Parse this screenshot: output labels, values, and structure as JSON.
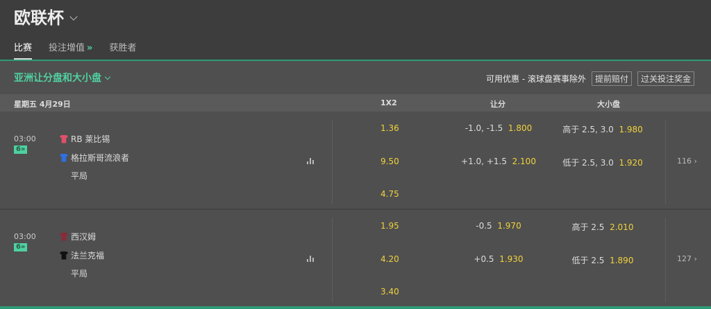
{
  "header": {
    "title": "欧联杯"
  },
  "tabs": [
    {
      "label": "比赛",
      "active": true
    },
    {
      "label": "投注增值",
      "suffix": "»"
    },
    {
      "label": "获胜者"
    }
  ],
  "section": {
    "title": "亚洲让分盘和大小盘",
    "promo_text": "可用优惠 - 滚球盘赛事除外",
    "buttons": [
      "提前赔付",
      "过关投注奖金"
    ]
  },
  "table_header": {
    "date": "星期五 4月29日",
    "col_1x2": "1X2",
    "col_handicap": "让分",
    "col_total": "大小盘"
  },
  "colors": {
    "accent": "#4fd1a0",
    "odds": "#f0d23c",
    "bg": "#4f4f4f"
  },
  "matches": [
    {
      "time": "03:00",
      "badge": "6»",
      "home": "RB 莱比锡",
      "away": "格拉斯哥流浪者",
      "draw": "平局",
      "home_shirt": "#e0506a",
      "away_shirt": "#2f6fe0",
      "odds_1x2": [
        "1.36",
        "9.50",
        "4.75"
      ],
      "handicap": [
        {
          "line": "-1.0, -1.5",
          "odd": "1.800"
        },
        {
          "line": "+1.0, +1.5",
          "odd": "2.100"
        }
      ],
      "total": [
        {
          "line": "高于 2.5, 3.0",
          "odd": "1.980"
        },
        {
          "line": "低于 2.5, 3.0",
          "odd": "1.920"
        }
      ],
      "more": "116"
    },
    {
      "time": "03:00",
      "badge": "6»",
      "home": "西汉姆",
      "away": "法兰克福",
      "draw": "平局",
      "home_shirt": "#8a2a3a",
      "away_shirt": "#111111",
      "odds_1x2": [
        "1.95",
        "4.20",
        "3.40"
      ],
      "handicap": [
        {
          "line": "-0.5",
          "odd": "1.970"
        },
        {
          "line": "+0.5",
          "odd": "1.930"
        }
      ],
      "total": [
        {
          "line": "高于 2.5",
          "odd": "2.010"
        },
        {
          "line": "低于 2.5",
          "odd": "1.890"
        }
      ],
      "more": "127"
    }
  ]
}
